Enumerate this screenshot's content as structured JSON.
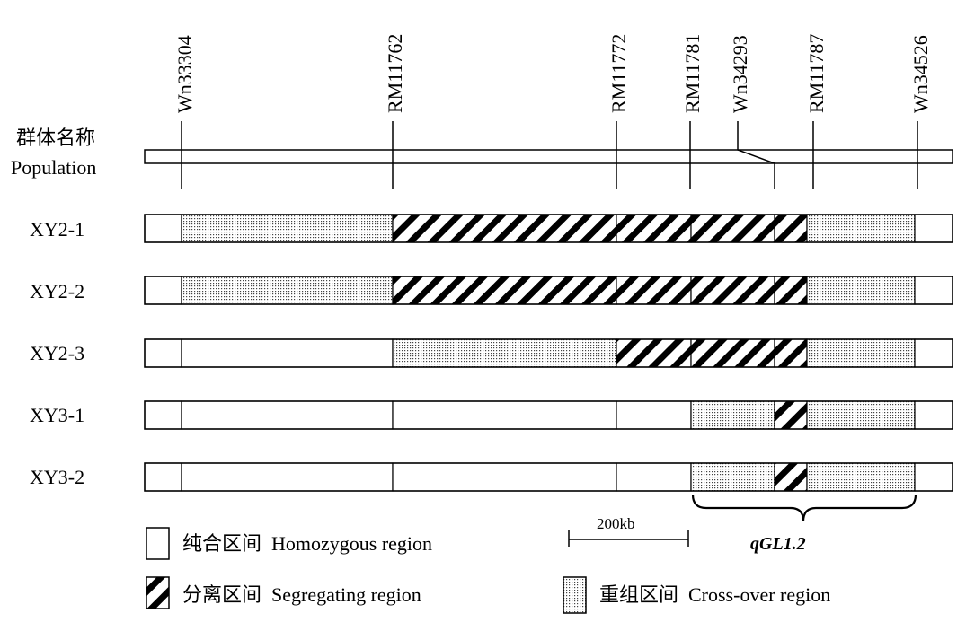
{
  "markers": [
    "Wn33304",
    "RM11762",
    "RM11772",
    "RM11781",
    "Wn34293",
    "RM11787",
    "Wn34526"
  ],
  "population_label": [
    "群体名称",
    "Population"
  ],
  "rows": [
    {
      "name": "XY2-1",
      "segments": [
        "homozygous",
        "crossover",
        "segregating",
        "segregating",
        "segregating",
        "segregating",
        "crossover",
        "homozygous"
      ]
    },
    {
      "name": "XY2-2",
      "segments": [
        "homozygous",
        "crossover",
        "segregating",
        "segregating",
        "segregating",
        "segregating",
        "crossover",
        "homozygous"
      ]
    },
    {
      "name": "XY2-3",
      "segments": [
        "homozygous",
        "homozygous",
        "crossover",
        "segregating",
        "segregating",
        "segregating",
        "crossover",
        "homozygous"
      ]
    },
    {
      "name": "XY3-1",
      "segments": [
        "homozygous",
        "homozygous",
        "homozygous",
        "homozygous",
        "crossover",
        "segregating",
        "crossover",
        "homozygous"
      ]
    },
    {
      "name": "XY3-2",
      "segments": [
        "homozygous",
        "homozygous",
        "homozygous",
        "homozygous",
        "crossover",
        "segregating",
        "crossover",
        "homozygous"
      ]
    }
  ],
  "legend": {
    "homozygous": "纯合区间  Homozygous region",
    "segregating": "分离区间  Segregating region",
    "crossover": "重组区间  Cross-over region"
  },
  "scale_label": "200kb",
  "gene_label": "qGL1.2"
}
